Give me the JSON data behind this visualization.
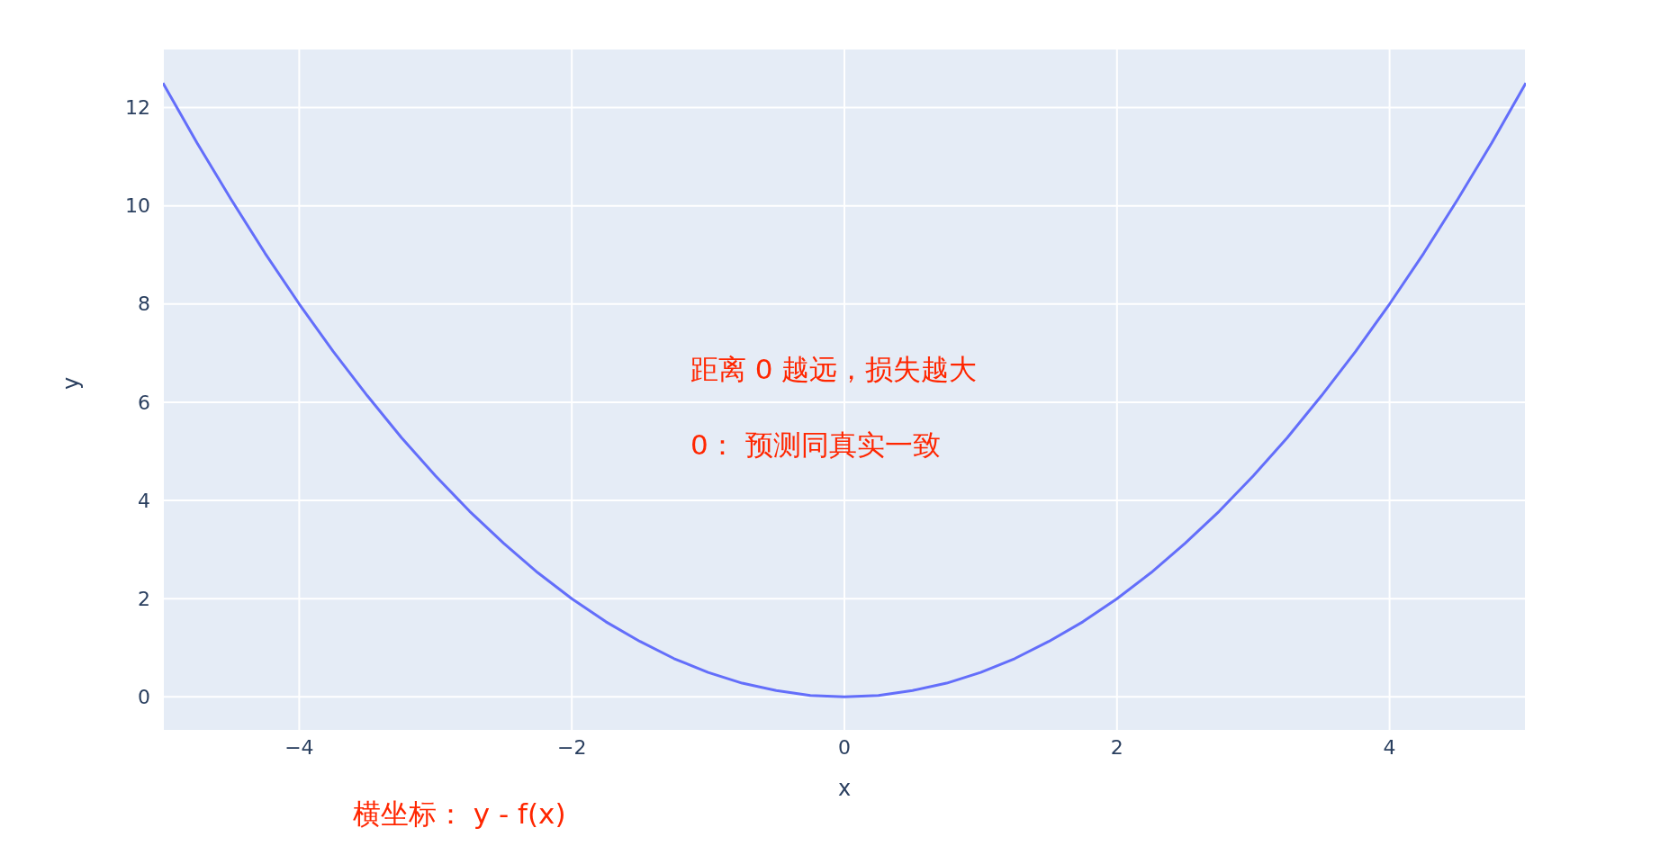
{
  "chart_data": {
    "type": "line",
    "xlabel": "x",
    "ylabel": "y",
    "x": [
      -5,
      -4.75,
      -4.5,
      -4.25,
      -4,
      -3.75,
      -3.5,
      -3.25,
      -3,
      -2.75,
      -2.5,
      -2.25,
      -2,
      -1.75,
      -1.5,
      -1.25,
      -1,
      -0.75,
      -0.5,
      -0.25,
      0,
      0.25,
      0.5,
      0.75,
      1,
      1.25,
      1.5,
      1.75,
      2,
      2.25,
      2.5,
      2.75,
      3,
      3.25,
      3.5,
      3.75,
      4,
      4.25,
      4.5,
      4.75,
      5
    ],
    "series": [
      {
        "color": "#636efa",
        "values": [
          12.5,
          11.28,
          10.13,
          9.03,
          8,
          7.03,
          6.13,
          5.28,
          4.5,
          3.78,
          3.13,
          2.53,
          2,
          1.53,
          1.13,
          0.78,
          0.5,
          0.28,
          0.13,
          0.03,
          0,
          0.03,
          0.13,
          0.28,
          0.5,
          0.78,
          1.13,
          1.53,
          2,
          2.53,
          3.13,
          3.78,
          4.5,
          5.28,
          6.13,
          7.03,
          8,
          9.03,
          10.13,
          11.28,
          12.5
        ]
      }
    ],
    "xlim": [
      -5,
      5
    ],
    "xticks": [
      {
        "value": -4,
        "label": "−4"
      },
      {
        "value": -2,
        "label": "−2"
      },
      0,
      2,
      4
    ],
    "ylim": [
      -0.69,
      13.2
    ],
    "yticks": [
      0,
      2,
      4,
      6,
      8,
      10,
      12
    ],
    "grid": true,
    "legend": false,
    "marker": "none",
    "line_style": "solid",
    "annotations": [
      "距离 0 越远，损失越大",
      "0： 预测同真实一致",
      "横坐标： y - f(x)"
    ]
  }
}
